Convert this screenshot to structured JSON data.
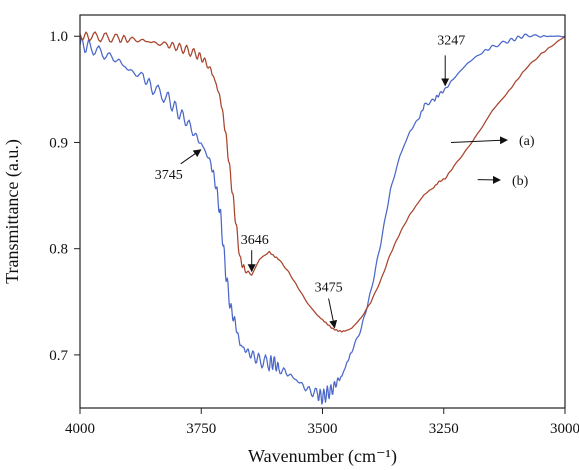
{
  "chart_data": {
    "type": "line",
    "title": "",
    "xlabel": "Wavenumber (cm⁻¹)",
    "ylabel": "Transmittance (a.u.)",
    "xlim": [
      4000,
      3000
    ],
    "ylim": [
      0.65,
      1.02
    ],
    "x_reversed": true,
    "grid": false,
    "x_ticks": [
      4000,
      3750,
      3500,
      3250,
      3000
    ],
    "x_tick_labels": [
      "4000",
      "3750",
      "3500",
      "3250",
      "3000"
    ],
    "y_ticks": [
      0.7,
      0.8,
      0.9,
      1.0
    ],
    "y_tick_labels": [
      "0.7",
      "0.8",
      "0.9",
      "1.0"
    ],
    "colors": {
      "series_a": "#4b68c9",
      "series_b": "#a9442d",
      "axis": "#222222"
    },
    "series": [
      {
        "name": "(a)",
        "color": "#4b68c9",
        "x": [
          4000,
          3980,
          3950,
          3920,
          3900,
          3870,
          3850,
          3820,
          3800,
          3780,
          3760,
          3745,
          3730,
          3720,
          3710,
          3700,
          3690,
          3680,
          3670,
          3660,
          3646,
          3630,
          3610,
          3600,
          3590,
          3570,
          3550,
          3530,
          3510,
          3500,
          3490,
          3480,
          3470,
          3460,
          3450,
          3440,
          3420,
          3400,
          3380,
          3360,
          3340,
          3320,
          3300,
          3290,
          3270,
          3260,
          3247,
          3230,
          3200,
          3170,
          3150,
          3120,
          3100,
          3080,
          3050,
          3030,
          3000
        ],
        "y": [
          0.992,
          0.99,
          0.983,
          0.977,
          0.968,
          0.962,
          0.951,
          0.942,
          0.93,
          0.92,
          0.905,
          0.895,
          0.88,
          0.86,
          0.83,
          0.78,
          0.745,
          0.73,
          0.71,
          0.705,
          0.7,
          0.695,
          0.692,
          0.693,
          0.687,
          0.682,
          0.675,
          0.667,
          0.663,
          0.66,
          0.664,
          0.667,
          0.675,
          0.68,
          0.692,
          0.703,
          0.725,
          0.76,
          0.805,
          0.855,
          0.888,
          0.91,
          0.924,
          0.935,
          0.94,
          0.945,
          0.95,
          0.96,
          0.975,
          0.985,
          0.99,
          0.995,
          0.998,
          1.001,
          1.0,
          1.0,
          1.0
        ]
      },
      {
        "name": "(b)",
        "color": "#a9442d",
        "x": [
          4000,
          3980,
          3950,
          3920,
          3900,
          3870,
          3850,
          3820,
          3800,
          3780,
          3760,
          3745,
          3730,
          3720,
          3710,
          3700,
          3690,
          3680,
          3670,
          3660,
          3646,
          3630,
          3610,
          3600,
          3590,
          3570,
          3550,
          3530,
          3510,
          3500,
          3490,
          3480,
          3470,
          3460,
          3450,
          3440,
          3420,
          3400,
          3380,
          3360,
          3340,
          3320,
          3300,
          3290,
          3270,
          3260,
          3247,
          3230,
          3200,
          3170,
          3150,
          3120,
          3100,
          3080,
          3050,
          3030,
          3000
        ],
        "y": [
          1.0,
          1.0,
          0.999,
          0.998,
          0.997,
          0.996,
          0.994,
          0.992,
          0.99,
          0.987,
          0.983,
          0.978,
          0.968,
          0.956,
          0.94,
          0.91,
          0.87,
          0.83,
          0.79,
          0.78,
          0.775,
          0.79,
          0.797,
          0.793,
          0.79,
          0.778,
          0.763,
          0.748,
          0.737,
          0.733,
          0.729,
          0.725,
          0.723,
          0.722,
          0.723,
          0.725,
          0.735,
          0.75,
          0.77,
          0.795,
          0.815,
          0.832,
          0.845,
          0.851,
          0.858,
          0.863,
          0.866,
          0.877,
          0.895,
          0.915,
          0.93,
          0.946,
          0.958,
          0.97,
          0.983,
          0.99,
          1.0
        ]
      }
    ],
    "annotations": [
      {
        "text": "3745",
        "x": 3745,
        "y": 0.895,
        "arrow": true,
        "label_position": "lower-left"
      },
      {
        "text": "3646",
        "x": 3646,
        "y": 0.775,
        "arrow": true,
        "label_position": "above"
      },
      {
        "text": "3475",
        "x": 3475,
        "y": 0.722,
        "arrow": true,
        "label_position": "above"
      },
      {
        "text": "3247",
        "x": 3247,
        "y": 0.95,
        "arrow": true,
        "label_position": "above"
      }
    ],
    "series_labels": [
      {
        "text": "(a)",
        "anchor_x": 3235,
        "anchor_y": 0.9
      },
      {
        "text": "(b)",
        "anchor_x": 3180,
        "anchor_y": 0.865
      }
    ]
  }
}
